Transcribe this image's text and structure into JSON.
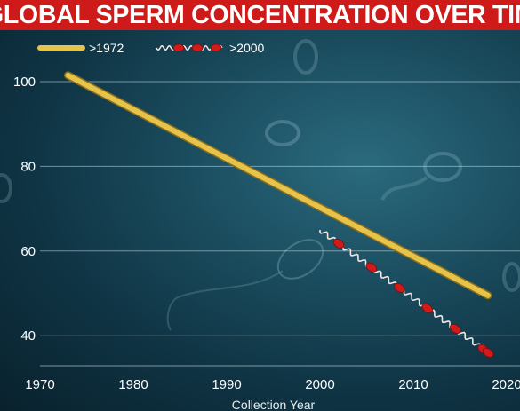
{
  "colors": {
    "title_bar": "#cf1a1a",
    "series_1972": "#e6c34a",
    "series_2000": "#d11a1a",
    "background": "#1a4c5e"
  },
  "chart_data": {
    "type": "line",
    "title": "GLOBAL SPERM CONCENTRATION OVER TIME",
    "xlabel": "Collection Year",
    "ylabel": "",
    "xlim": [
      1966.5,
      2020
    ],
    "ylim": [
      35,
      108
    ],
    "x_ticks": [
      "1970",
      "1980",
      "1990",
      "2000",
      "2010",
      "2020"
    ],
    "x_tick_values": [
      1970,
      1980,
      1990,
      2000,
      2010,
      2020
    ],
    "y_ticks": [
      "100",
      "80",
      "60",
      "40"
    ],
    "y_tick_values": [
      100,
      80,
      60,
      40
    ],
    "grid": true,
    "legend_position": "top-left",
    "series": [
      {
        "name": ">1972",
        "style": "thick-line",
        "x": [
          1973,
          2018
        ],
        "values": [
          101.5,
          49.5
        ]
      },
      {
        "name": ">2000",
        "style": "wavy-sperm",
        "x": [
          2000,
          2018
        ],
        "values": [
          65,
          36
        ],
        "markers_x": [
          2002,
          2005.5,
          2008.5,
          2011.5,
          2014.5,
          2017.5
        ]
      }
    ]
  }
}
